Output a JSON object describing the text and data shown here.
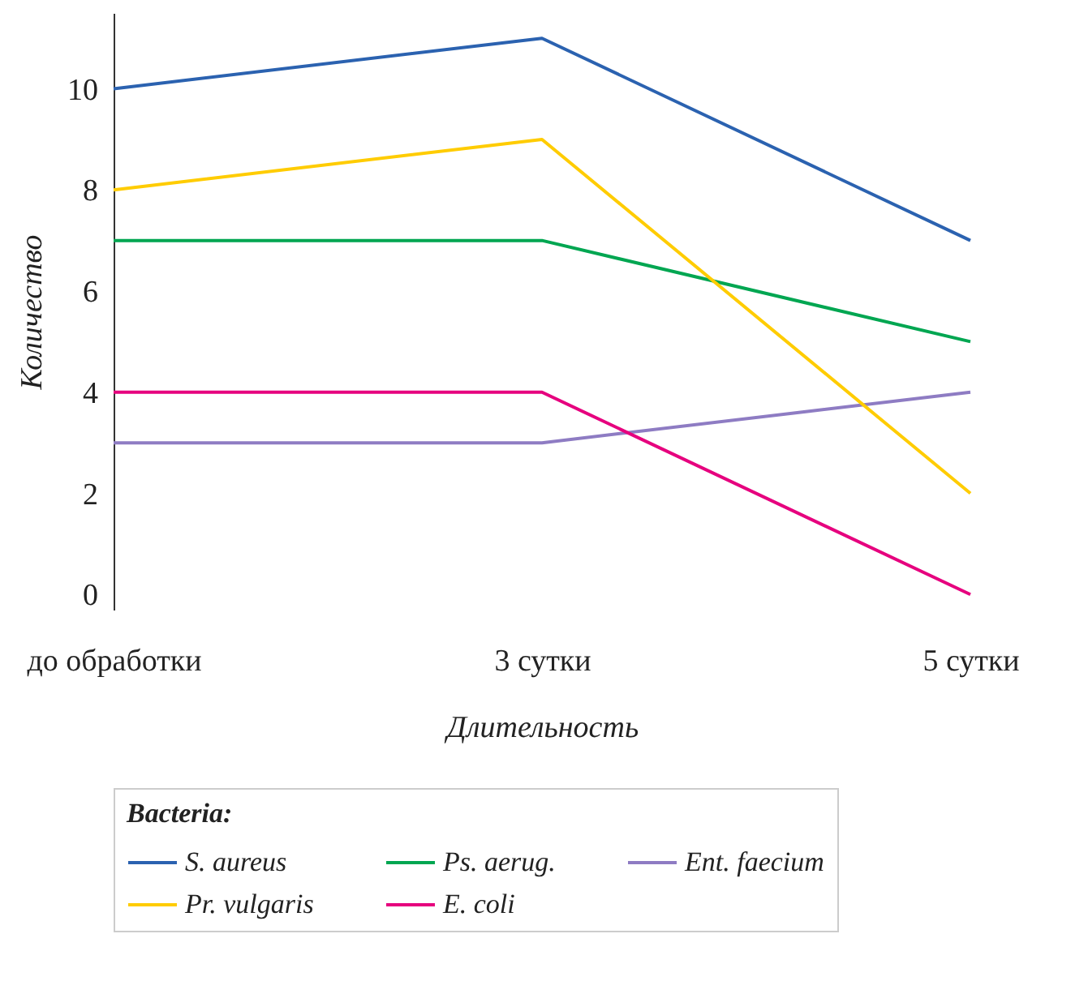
{
  "chart_data": {
    "type": "line",
    "xlabel": "Длительность",
    "ylabel": "Количество",
    "legend_title": "Bacteria:",
    "legend": "bottom",
    "grid": false,
    "marker": "none",
    "line_style": "solid",
    "categories": [
      "до обработки",
      "3 сутки",
      "5 сутки"
    ],
    "ylim": [
      -0.3,
      11.5
    ],
    "yticks": [
      0,
      2,
      4,
      6,
      8,
      10
    ],
    "series": [
      {
        "name": "S. aureus",
        "color": "#2b62b0",
        "values": [
          10,
          11,
          7
        ]
      },
      {
        "name": "Ps. aerug.",
        "color": "#00a651",
        "values": [
          7,
          7,
          5
        ]
      },
      {
        "name": "Ent. faecium",
        "color": "#8e7cc3",
        "values": [
          3,
          3,
          4
        ]
      },
      {
        "name": "Pr. vulgaris",
        "color": "#ffcc00",
        "values": [
          8,
          9,
          2
        ]
      },
      {
        "name": "E. coli",
        "color": "#e6007e",
        "values": [
          4,
          4,
          0
        ]
      }
    ]
  }
}
